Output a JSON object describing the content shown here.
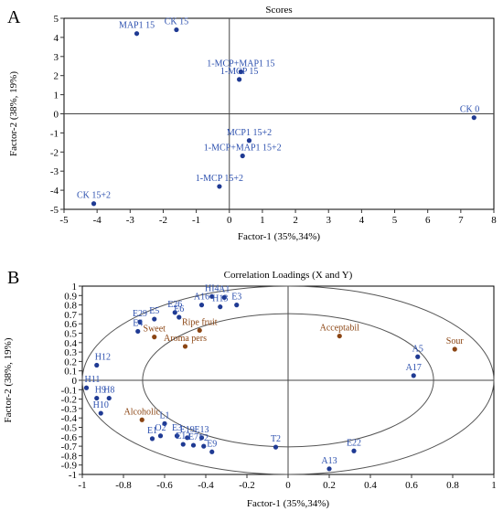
{
  "colors": {
    "blue": "#1f3a93",
    "brown": "#8b4513",
    "label_blue": "#2b4fae",
    "label_brown": "#8b4513"
  },
  "panels": [
    {
      "panel_label": "A",
      "chart_data": {
        "type": "scatter",
        "title": "Scores",
        "xlabel": "Factor-1 (35%,34%)",
        "ylabel": "Factor-2 (38%, 19%)",
        "xlim": [
          -5,
          8
        ],
        "ylim": [
          -5,
          5
        ],
        "xticks": [
          "-5",
          "-4",
          "-3",
          "-2",
          "-1",
          "0",
          "1",
          "2",
          "3",
          "4",
          "5",
          "6",
          "7",
          "8"
        ],
        "yticks": [
          "5",
          "4",
          "3",
          "2",
          "1",
          "0",
          "-1",
          "-2",
          "-3",
          "-4",
          "-5"
        ],
        "ellipses": false,
        "points": [
          {
            "label": "MAP1 15",
            "x": -2.8,
            "y": 4.2,
            "group": "sample"
          },
          {
            "label": "CK 15",
            "x": -1.6,
            "y": 4.4,
            "group": "sample"
          },
          {
            "label": "1-MCP+MAP1   15",
            "x": 0.35,
            "y": 2.2,
            "group": "sample"
          },
          {
            "label": "1-MCP 15",
            "x": 0.3,
            "y": 1.8,
            "group": "sample"
          },
          {
            "label": "CK 0",
            "x": 7.4,
            "y": -0.2,
            "group": "sample"
          },
          {
            "label": "MCP1  15+2",
            "x": 0.6,
            "y": -1.4,
            "group": "sample"
          },
          {
            "label": "1-MCP+MAP1    15+2",
            "x": 0.4,
            "y": -2.2,
            "group": "sample"
          },
          {
            "label": "1-MCP  15+2",
            "x": -0.3,
            "y": -3.8,
            "group": "sample"
          },
          {
            "label": "CK 15+2",
            "x": -4.1,
            "y": -4.7,
            "group": "sample"
          }
        ]
      }
    },
    {
      "panel_label": "B",
      "chart_data": {
        "type": "scatter",
        "title": "Correlation Loadings (X and Y)",
        "xlabel": "Factor-1 (35%,34%)",
        "ylabel": "Factor-2 (38%, 19%)",
        "xlim": [
          -1,
          1
        ],
        "ylim": [
          -1,
          1
        ],
        "xticks": [
          "-1",
          "-0.8",
          "-0.6",
          "-0.4",
          "-0.2",
          "0",
          "0.2",
          "0.4",
          "0.6",
          "0.8",
          "1"
        ],
        "yticks": [
          "1",
          "0.9",
          "0.8",
          "0.7",
          "0.6",
          "0.5",
          "0.4",
          "0.3",
          "0.2",
          "0.1",
          "0",
          "-0.1",
          "-0.2",
          "-0.3",
          "-0.4",
          "-0.5",
          "-0.6",
          "-0.7",
          "-0.8",
          "-0.9",
          "-1"
        ],
        "ellipses": true,
        "points": [
          {
            "label": "HI4",
            "x": -0.37,
            "y": 0.89,
            "group": "x"
          },
          {
            "label": "A1",
            "x": -0.31,
            "y": 0.88,
            "group": "x"
          },
          {
            "label": "E3",
            "x": -0.25,
            "y": 0.8,
            "group": "x"
          },
          {
            "label": "A16",
            "x": -0.42,
            "y": 0.8,
            "group": "x"
          },
          {
            "label": "H13",
            "x": -0.33,
            "y": 0.78,
            "group": "x"
          },
          {
            "label": "E26",
            "x": -0.55,
            "y": 0.72,
            "group": "x"
          },
          {
            "label": "E6",
            "x": -0.53,
            "y": 0.67,
            "group": "x"
          },
          {
            "label": "E5",
            "x": -0.65,
            "y": 0.65,
            "group": "x"
          },
          {
            "label": "E29",
            "x": -0.72,
            "y": 0.62,
            "group": "x"
          },
          {
            "label": "E4",
            "x": -0.73,
            "y": 0.52,
            "group": "x"
          },
          {
            "label": "Sweet",
            "x": -0.65,
            "y": 0.46,
            "group": "y"
          },
          {
            "label": "Ripe fruit",
            "x": -0.43,
            "y": 0.53,
            "group": "y"
          },
          {
            "label": "Aroma pers",
            "x": -0.5,
            "y": 0.36,
            "group": "y"
          },
          {
            "label": "H12",
            "x": -0.93,
            "y": 0.16,
            "group": "x"
          },
          {
            "label": "H11",
            "x": -0.98,
            "y": -0.08,
            "group": "x"
          },
          {
            "label": "H9",
            "x": -0.93,
            "y": -0.19,
            "group": "x"
          },
          {
            "label": "H8",
            "x": -0.87,
            "y": -0.19,
            "group": "x"
          },
          {
            "label": "H10",
            "x": -0.91,
            "y": -0.35,
            "group": "x"
          },
          {
            "label": "Alcoholic",
            "x": -0.71,
            "y": -0.42,
            "group": "y"
          },
          {
            "label": "L1",
            "x": -0.6,
            "y": -0.46,
            "group": "x"
          },
          {
            "label": "O2",
            "x": -0.62,
            "y": -0.59,
            "group": "x"
          },
          {
            "label": "E1",
            "x": -0.66,
            "y": -0.62,
            "group": "x"
          },
          {
            "label": "E3",
            "x": -0.54,
            "y": -0.59,
            "group": "x"
          },
          {
            "label": "E19",
            "x": -0.49,
            "y": -0.61,
            "group": "x"
          },
          {
            "label": "E13",
            "x": -0.42,
            "y": -0.61,
            "group": "x"
          },
          {
            "label": "E12",
            "x": -0.51,
            "y": -0.68,
            "group": "x"
          },
          {
            "label": "E7",
            "x": -0.46,
            "y": -0.69,
            "group": "x"
          },
          {
            "label": "F2",
            "x": -0.41,
            "y": -0.7,
            "group": "x"
          },
          {
            "label": "E9",
            "x": -0.37,
            "y": -0.76,
            "group": "x"
          },
          {
            "label": "T2",
            "x": -0.06,
            "y": -0.71,
            "group": "x"
          },
          {
            "label": "A13",
            "x": 0.2,
            "y": -0.94,
            "group": "x"
          },
          {
            "label": "E22",
            "x": 0.32,
            "y": -0.75,
            "group": "x"
          },
          {
            "label": "Acceptabil",
            "x": 0.25,
            "y": 0.47,
            "group": "y"
          },
          {
            "label": "A5",
            "x": 0.63,
            "y": 0.25,
            "group": "x"
          },
          {
            "label": "A17",
            "x": 0.61,
            "y": 0.05,
            "group": "x"
          },
          {
            "label": "Sour",
            "x": 0.81,
            "y": 0.33,
            "group": "y"
          }
        ]
      }
    }
  ]
}
